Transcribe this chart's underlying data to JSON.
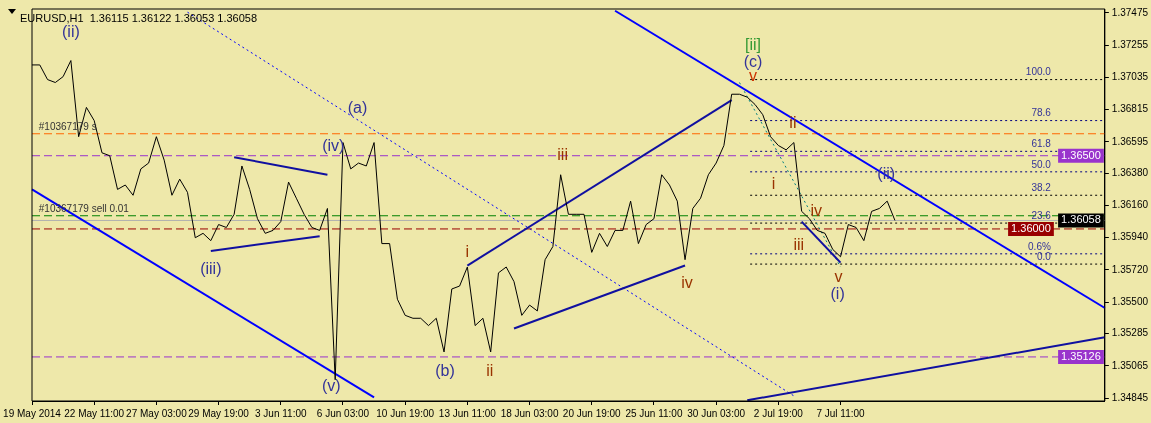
{
  "chart_data": {
    "type": "line",
    "title": "EURUSD,H1  1.36115 1.36122 1.36053 1.36058",
    "marker": "none",
    "grid": false,
    "legend": false,
    "categories": [
      "19 May 2014",
      null,
      null,
      null,
      null,
      null,
      null,
      null,
      "22 May 11:00",
      null,
      null,
      null,
      null,
      null,
      null,
      null,
      "27 May 03:00",
      null,
      null,
      null,
      null,
      null,
      null,
      null,
      "29 May 19:00",
      null,
      null,
      null,
      null,
      null,
      null,
      null,
      "3 Jun 11:00",
      null,
      null,
      null,
      null,
      null,
      null,
      null,
      "6 Jun 03:00",
      null,
      null,
      null,
      null,
      null,
      null,
      null,
      "10 Jun 19:00",
      null,
      null,
      null,
      null,
      null,
      null,
      null,
      "13 Jun 11:00",
      null,
      null,
      null,
      null,
      null,
      null,
      null,
      "18 Jun 03:00",
      null,
      null,
      null,
      null,
      null,
      null,
      null,
      "20 Jun 19:00",
      null,
      null,
      null,
      null,
      null,
      null,
      null,
      "25 Jun 11:00",
      null,
      null,
      null,
      null,
      null,
      null,
      null,
      "30 Jun 03:00",
      null,
      null,
      null,
      null,
      null,
      null,
      null,
      "2 Jul 19:00",
      null,
      null,
      null,
      null,
      null,
      null,
      null,
      "7 Jul 11:00",
      null,
      null,
      null,
      null,
      null,
      null,
      null,
      null,
      null,
      null,
      null,
      null,
      null,
      null,
      null,
      null,
      null,
      null,
      null,
      null,
      null,
      null,
      null,
      null,
      null,
      null,
      null,
      null,
      null,
      null,
      null,
      null,
      null,
      null
    ],
    "series": [
      {
        "color": "#000000",
        "line_style": "solid",
        "values": [
          1.3712,
          1.3712,
          1.3702,
          1.37,
          1.3704,
          1.3715,
          1.3663,
          1.3683,
          1.3674,
          1.3652,
          1.365,
          1.3627,
          1.363,
          1.3623,
          1.3641,
          1.3645,
          1.3663,
          1.3647,
          1.3623,
          1.3634,
          1.3625,
          1.3594,
          1.3597,
          1.3592,
          1.3603,
          1.3601,
          1.361,
          1.3643,
          1.3627,
          1.3607,
          1.3597,
          1.3599,
          1.3605,
          1.3632,
          1.3621,
          1.361,
          1.3601,
          1.3599,
          1.3614,
          1.3497,
          1.3659,
          1.3641,
          1.3645,
          1.3643,
          1.3659,
          1.359,
          1.359,
          1.3552,
          1.3541,
          1.3539,
          1.3539,
          1.3534,
          1.3539,
          1.3516,
          1.3559,
          1.3561,
          1.3574,
          1.3534,
          1.3539,
          1.3516,
          1.357,
          1.3574,
          1.3564,
          1.3541,
          1.3548,
          1.3544,
          1.3579,
          1.3588,
          1.3637,
          1.361,
          1.361,
          1.361,
          1.3584,
          1.3597,
          1.3588,
          1.3599,
          1.3599,
          1.3619,
          1.359,
          1.3603,
          1.3607,
          1.3637,
          1.363,
          1.3619,
          1.3579,
          1.3614,
          1.3621,
          1.3637,
          1.3645,
          1.3657,
          1.3692,
          1.3692,
          1.369,
          1.3685,
          1.3678,
          1.3663,
          1.3657,
          1.3654,
          1.3659,
          1.3612,
          1.3607,
          1.3599,
          1.3597,
          1.3586,
          1.3581,
          1.3603,
          1.3601,
          1.3592,
          1.3612,
          1.3614,
          1.3619,
          1.36058,
          null,
          null,
          null,
          null,
          null,
          null,
          null,
          null,
          null,
          null,
          null,
          null,
          null,
          null,
          null,
          null,
          null,
          null,
          null,
          null,
          null,
          null,
          null,
          null,
          null,
          null,
          null
        ]
      },
      {
        "color": "#0000ff",
        "line_style": "solid",
        "values": [
          null,
          null,
          null,
          null,
          null,
          null,
          null,
          null,
          null,
          null,
          null,
          null,
          null,
          null,
          null,
          null,
          null,
          null,
          null,
          null,
          null,
          null,
          null,
          null,
          null,
          null,
          null,
          null,
          null,
          null,
          null,
          null,
          null,
          null,
          null,
          null,
          null,
          null,
          null,
          null,
          null,
          null,
          null,
          null,
          null,
          null,
          null,
          null,
          null,
          null,
          null,
          null,
          null,
          null,
          null,
          null,
          null,
          null,
          null,
          null,
          null,
          null,
          null,
          null,
          null,
          null,
          null,
          null,
          null,
          null,
          null,
          null,
          null,
          null,
          null,
          1.3749,
          null,
          null,
          null,
          null,
          null,
          null,
          null,
          null,
          null,
          null,
          null,
          null,
          null,
          null,
          null,
          null,
          null,
          null,
          null,
          null,
          null,
          null,
          null,
          null,
          null,
          null,
          null,
          null,
          null,
          null,
          null,
          null,
          null,
          null,
          null,
          null,
          null,
          null,
          null,
          null,
          null,
          null,
          null,
          null,
          null,
          null,
          null,
          null,
          null,
          null,
          null,
          null,
          null,
          null,
          null,
          null,
          null,
          null,
          null,
          null,
          null,
          null,
          1.3546
        ]
      },
      {
        "color": "#0000ff",
        "line_style": "solid",
        "values": [
          1.3627,
          null,
          null,
          null,
          null,
          null,
          null,
          null,
          null,
          null,
          null,
          null,
          null,
          null,
          null,
          null,
          null,
          null,
          null,
          null,
          null,
          null,
          null,
          null,
          null,
          null,
          null,
          null,
          null,
          null,
          null,
          null,
          null,
          null,
          null,
          null,
          null,
          null,
          null,
          null,
          null,
          null,
          null,
          null,
          1.3485,
          null,
          null,
          null,
          null,
          null,
          null,
          null,
          null,
          null,
          null,
          null,
          null,
          null,
          null,
          null,
          null,
          null,
          null,
          null,
          null,
          null,
          null,
          null,
          null,
          null,
          null,
          null,
          null,
          null,
          null,
          null,
          null,
          null,
          null,
          null,
          null,
          null,
          null,
          null,
          null,
          null,
          null,
          null,
          null,
          null,
          null,
          null,
          null,
          null,
          null,
          null,
          null,
          null,
          null,
          null,
          null,
          null,
          null,
          null,
          null,
          null,
          null,
          null,
          null,
          null,
          null,
          null,
          null,
          null,
          null,
          null,
          null,
          null,
          null,
          null,
          null,
          null,
          null,
          null,
          null,
          null,
          null,
          null,
          null,
          null,
          null,
          null,
          null,
          null,
          null,
          null,
          null,
          null,
          null
        ]
      },
      {
        "color": "#1010a0",
        "line_style": "solid",
        "values": [
          null,
          null,
          null,
          null,
          null,
          null,
          null,
          null,
          null,
          null,
          null,
          null,
          null,
          null,
          null,
          null,
          null,
          null,
          null,
          null,
          null,
          null,
          null,
          null,
          null,
          null,
          null,
          null,
          null,
          null,
          null,
          null,
          null,
          null,
          null,
          null,
          null,
          null,
          null,
          null,
          null,
          null,
          null,
          null,
          null,
          null,
          null,
          null,
          null,
          null,
          null,
          null,
          null,
          null,
          null,
          null,
          null,
          null,
          null,
          null,
          null,
          null,
          null,
          null,
          null,
          null,
          null,
          null,
          null,
          null,
          null,
          null,
          null,
          null,
          null,
          null,
          null,
          null,
          null,
          null,
          null,
          null,
          null,
          null,
          null,
          null,
          null,
          null,
          null,
          null,
          null,
          null,
          1.3483,
          null,
          null,
          null,
          null,
          null,
          null,
          null,
          null,
          null,
          null,
          null,
          null,
          null,
          null,
          null,
          null,
          null,
          null,
          null,
          null,
          null,
          null,
          null,
          null,
          null,
          null,
          null,
          null,
          null,
          null,
          null,
          null,
          null,
          null,
          null,
          null,
          null,
          null,
          null,
          null,
          null,
          null,
          null,
          null,
          null,
          1.3526
        ]
      },
      {
        "color": "#1010a0",
        "line_style": "solid",
        "values": [
          null,
          null,
          null,
          null,
          null,
          null,
          null,
          null,
          null,
          null,
          null,
          null,
          null,
          null,
          null,
          null,
          null,
          null,
          null,
          null,
          null,
          null,
          null,
          null,
          null,
          null,
          1.3649,
          null,
          null,
          null,
          null,
          null,
          null,
          null,
          null,
          null,
          null,
          null,
          1.3637,
          null,
          null,
          null,
          null,
          null,
          null,
          null,
          null,
          null,
          null,
          null,
          null,
          null,
          null,
          null,
          null,
          null,
          null,
          null,
          null,
          null,
          null,
          null,
          null,
          null,
          null,
          null,
          null,
          null,
          null,
          null,
          null,
          null,
          null,
          null,
          null,
          null,
          null,
          null,
          null,
          null,
          null,
          null,
          null,
          null,
          null,
          null,
          null,
          null,
          null,
          null,
          null,
          null,
          null,
          null,
          null,
          null,
          null,
          null,
          null,
          null,
          null,
          null,
          null,
          null,
          null,
          null,
          null,
          null,
          null,
          null,
          null,
          null,
          null,
          null,
          null,
          null,
          null,
          null,
          null,
          null,
          null,
          null,
          null,
          null,
          null,
          null,
          null,
          null,
          null,
          null,
          null,
          null,
          null,
          null,
          null,
          null,
          null,
          null,
          null
        ]
      },
      {
        "color": "#1010a0",
        "line_style": "solid",
        "values": [
          null,
          null,
          null,
          null,
          null,
          null,
          null,
          null,
          null,
          null,
          null,
          null,
          null,
          null,
          null,
          null,
          null,
          null,
          null,
          null,
          null,
          null,
          null,
          1.3585,
          null,
          null,
          null,
          null,
          null,
          null,
          null,
          null,
          null,
          null,
          null,
          null,
          null,
          1.3595,
          null,
          null,
          null,
          null,
          null,
          null,
          null,
          null,
          null,
          null,
          null,
          null,
          null,
          null,
          null,
          null,
          null,
          null,
          null,
          null,
          null,
          null,
          null,
          null,
          null,
          null,
          null,
          null,
          null,
          null,
          null,
          null,
          null,
          null,
          null,
          null,
          null,
          null,
          null,
          null,
          null,
          null,
          null,
          null,
          null,
          null,
          null,
          null,
          null,
          null,
          null,
          null,
          null,
          null,
          null,
          null,
          null,
          null,
          null,
          null,
          null,
          null,
          null,
          null,
          null,
          null,
          null,
          null,
          null,
          null,
          null,
          null,
          null,
          null,
          null,
          null,
          null,
          null,
          null,
          null,
          null,
          null,
          null,
          null,
          null,
          null,
          null,
          null,
          null,
          null,
          null,
          null,
          null,
          null,
          null,
          null,
          null,
          null,
          null,
          null,
          null
        ]
      },
      {
        "color": "#1010a0",
        "line_style": "solid",
        "values": [
          null,
          null,
          null,
          null,
          null,
          null,
          null,
          null,
          null,
          null,
          null,
          null,
          null,
          null,
          null,
          null,
          null,
          null,
          null,
          null,
          null,
          null,
          null,
          null,
          null,
          null,
          null,
          null,
          null,
          null,
          null,
          null,
          null,
          null,
          null,
          null,
          null,
          null,
          null,
          null,
          null,
          null,
          null,
          null,
          null,
          null,
          null,
          null,
          null,
          null,
          null,
          null,
          null,
          null,
          null,
          null,
          1.3575,
          null,
          null,
          null,
          null,
          null,
          null,
          null,
          null,
          null,
          null,
          null,
          null,
          null,
          null,
          null,
          null,
          null,
          null,
          null,
          null,
          null,
          null,
          null,
          null,
          null,
          null,
          null,
          null,
          null,
          null,
          null,
          null,
          null,
          1.3688,
          null,
          null,
          null,
          null,
          null,
          null,
          null,
          null,
          null,
          null,
          null,
          null,
          null,
          null,
          null,
          null,
          null,
          null,
          null,
          null,
          null,
          null,
          null,
          null,
          null,
          null,
          null,
          null,
          null,
          null,
          null,
          null,
          null,
          null,
          null,
          null,
          null,
          null,
          null,
          null,
          null,
          null,
          null,
          null,
          null,
          null,
          null,
          null
        ]
      },
      {
        "color": "#1010a0",
        "line_style": "solid",
        "values": [
          null,
          null,
          null,
          null,
          null,
          null,
          null,
          null,
          null,
          null,
          null,
          null,
          null,
          null,
          null,
          null,
          null,
          null,
          null,
          null,
          null,
          null,
          null,
          null,
          null,
          null,
          null,
          null,
          null,
          null,
          null,
          null,
          null,
          null,
          null,
          null,
          null,
          null,
          null,
          null,
          null,
          null,
          null,
          null,
          null,
          null,
          null,
          null,
          null,
          null,
          null,
          null,
          null,
          null,
          null,
          null,
          null,
          null,
          null,
          null,
          null,
          null,
          1.3532,
          null,
          null,
          null,
          null,
          null,
          null,
          null,
          null,
          null,
          null,
          null,
          null,
          null,
          null,
          null,
          null,
          null,
          null,
          null,
          null,
          null,
          1.3575,
          null,
          null,
          null,
          null,
          null,
          null,
          null,
          null,
          null,
          null,
          null,
          null,
          null,
          null,
          null,
          null,
          null,
          null,
          null,
          null,
          null,
          null,
          null,
          null,
          null,
          null,
          null,
          null,
          null,
          null,
          null,
          null,
          null,
          null,
          null,
          null,
          null,
          null,
          null,
          null,
          null,
          null,
          null,
          null,
          null,
          null,
          null,
          null,
          null,
          null,
          null,
          null,
          null,
          null
        ]
      },
      {
        "color": "#1010a0",
        "line_style": "solid",
        "values": [
          null,
          null,
          null,
          null,
          null,
          null,
          null,
          null,
          null,
          null,
          null,
          null,
          null,
          null,
          null,
          null,
          null,
          null,
          null,
          null,
          null,
          null,
          null,
          null,
          null,
          null,
          null,
          null,
          null,
          null,
          null,
          null,
          null,
          null,
          null,
          null,
          null,
          null,
          null,
          null,
          null,
          null,
          null,
          null,
          null,
          null,
          null,
          null,
          null,
          null,
          null,
          null,
          null,
          null,
          null,
          null,
          null,
          null,
          null,
          null,
          null,
          null,
          null,
          null,
          null,
          null,
          null,
          null,
          null,
          null,
          null,
          null,
          null,
          null,
          null,
          null,
          null,
          null,
          null,
          null,
          null,
          null,
          null,
          null,
          null,
          null,
          null,
          null,
          null,
          null,
          null,
          null,
          null,
          null,
          null,
          null,
          null,
          null,
          null,
          1.3605,
          null,
          null,
          null,
          null,
          1.3577,
          null,
          null,
          null,
          null,
          null,
          null,
          null,
          null,
          null,
          null,
          null,
          null,
          null,
          null,
          null,
          null,
          null,
          null,
          null,
          null,
          null,
          null,
          null,
          null,
          null,
          null,
          null,
          null,
          null,
          null,
          null,
          null,
          null,
          null
        ]
      },
      {
        "color": "#0000ff",
        "line_style": "dotted",
        "values": [
          null,
          null,
          null,
          null,
          null,
          null,
          null,
          null,
          null,
          null,
          null,
          null,
          null,
          null,
          null,
          null,
          null,
          null,
          null,
          null,
          1.3748,
          null,
          null,
          null,
          null,
          null,
          null,
          null,
          null,
          null,
          null,
          null,
          null,
          null,
          null,
          null,
          null,
          null,
          null,
          null,
          null,
          null,
          null,
          null,
          null,
          null,
          null,
          null,
          null,
          null,
          null,
          null,
          null,
          null,
          null,
          null,
          null,
          null,
          null,
          null,
          null,
          null,
          null,
          null,
          null,
          null,
          null,
          null,
          null,
          null,
          null,
          null,
          null,
          null,
          null,
          null,
          null,
          null,
          null,
          null,
          null,
          null,
          null,
          null,
          null,
          null,
          null,
          null,
          null,
          null,
          null,
          null,
          null,
          null,
          null,
          null,
          null,
          null,
          1.3486,
          null,
          null,
          null,
          null,
          null,
          null,
          null,
          null,
          null,
          null,
          null,
          null,
          null,
          null,
          null,
          null,
          null,
          null,
          null,
          null,
          null,
          null,
          null,
          null,
          null,
          null,
          null,
          null,
          null,
          null,
          null,
          null,
          null,
          null,
          null,
          null,
          null,
          null,
          null,
          null
        ]
      },
      {
        "color": "#008080",
        "line_style": "dotted",
        "values": [
          null,
          null,
          null,
          null,
          null,
          null,
          null,
          null,
          null,
          null,
          null,
          null,
          null,
          null,
          null,
          null,
          null,
          null,
          null,
          null,
          null,
          null,
          null,
          null,
          null,
          null,
          null,
          null,
          null,
          null,
          null,
          null,
          null,
          null,
          null,
          null,
          null,
          null,
          null,
          null,
          null,
          null,
          null,
          null,
          null,
          null,
          null,
          null,
          null,
          null,
          null,
          null,
          null,
          null,
          null,
          null,
          null,
          null,
          null,
          null,
          null,
          null,
          null,
          null,
          null,
          null,
          null,
          null,
          null,
          null,
          null,
          null,
          null,
          null,
          null,
          null,
          null,
          null,
          null,
          null,
          null,
          null,
          null,
          null,
          null,
          null,
          null,
          null,
          null,
          null,
          null,
          1.37,
          null,
          null,
          null,
          null,
          null,
          null,
          null,
          null,
          null,
          null,
          null,
          null,
          1.3574,
          null,
          null,
          null,
          null,
          null,
          null,
          null,
          null,
          null,
          null,
          null,
          null,
          null,
          null,
          null,
          null,
          null,
          null,
          null,
          null,
          null,
          null,
          null,
          null,
          null,
          null,
          null,
          null,
          null,
          null,
          null,
          null,
          null,
          null
        ]
      }
    ],
    "ylim": [
      1.34825,
      1.37502
    ],
    "yticks": [
      1.37475,
      1.37255,
      1.37035,
      1.36815,
      1.36595,
      {
        "value": 1.3638,
        "label": "1.36380"
      },
      {
        "value": 1.3616,
        "label": "1.36160"
      },
      {
        "value": 1.3594,
        "label": "1.35940"
      },
      {
        "value": 1.3572,
        "label": "1.35720"
      },
      {
        "value": 1.355,
        "label": "1.35500"
      },
      1.35285,
      1.35065,
      1.34845
    ],
    "ref_lines": [
      {
        "axis": "y",
        "value": 1.3665,
        "color": "#ff6600",
        "line_style": "dashed"
      },
      {
        "axis": "y",
        "value": 1.365,
        "label": "1.36500",
        "color": "#9933cc",
        "line_style": "dashed"
      },
      {
        "axis": "y",
        "value": 1.3609,
        "color": "#008000",
        "line_style": "dashed"
      },
      {
        "axis": "y",
        "value": 1.36058,
        "label": "1.36058",
        "color": "#b0b0b0",
        "line_style": "solid"
      },
      {
        "axis": "y",
        "value": 1.36,
        "label": "1.36000",
        "color": "#990000",
        "line_style": "dashed"
      },
      {
        "axis": "y",
        "value": 1.35126,
        "label": "1.35126",
        "color": "#9933cc",
        "line_style": "dashed"
      },
      {
        "axis": "y",
        "value": 1.3702,
        "color": "#000000",
        "line_style": "dotted"
      },
      {
        "axis": "y",
        "value": 1.3674,
        "color": "#000080",
        "line_style": "dotted"
      },
      {
        "axis": "y",
        "value": 1.3653,
        "color": "#000080",
        "line_style": "dotted"
      },
      {
        "axis": "y",
        "value": 1.3639,
        "color": "#000080",
        "line_style": "dotted"
      },
      {
        "axis": "y",
        "value": 1.3623,
        "color": "#000000",
        "line_style": "dotted"
      },
      {
        "axis": "y",
        "value": 1.3604,
        "color": "#000000",
        "line_style": "dotted"
      },
      {
        "axis": "y",
        "value": 1.3583,
        "color": "#000080",
        "line_style": "dotted"
      },
      {
        "axis": "y",
        "value": 1.3576,
        "color": "#000000",
        "line_style": "dotted"
      }
    ],
    "annotations": [
      "(ii)",
      "(a)",
      "(iv)",
      "(iii)",
      "(v)",
      "(b)",
      "i",
      "ii",
      "iii",
      "iv",
      "[ii]",
      "(c)",
      "v",
      "ii",
      "i",
      "iv",
      "iii",
      "v",
      "(i)",
      "(ii)",
      {
        "text": "#10367179 s",
        "y": 1.3665
      },
      {
        "text": "#10367179 sell 0.01",
        "y": 1.3609
      },
      {
        "text": "100.0",
        "y": 1.3702
      },
      {
        "text": "78.6",
        "y": 1.3674
      },
      {
        "text": "61.8",
        "y": 1.3653
      },
      {
        "text": "50.0",
        "y": 1.3639
      },
      {
        "text": "38.2",
        "y": 1.3623
      },
      {
        "text": "23.6",
        "y": 1.3604
      },
      {
        "text": "0.6%",
        "y": 1.3583
      },
      {
        "text": "0.0",
        "y": 1.3576
      }
    ]
  }
}
